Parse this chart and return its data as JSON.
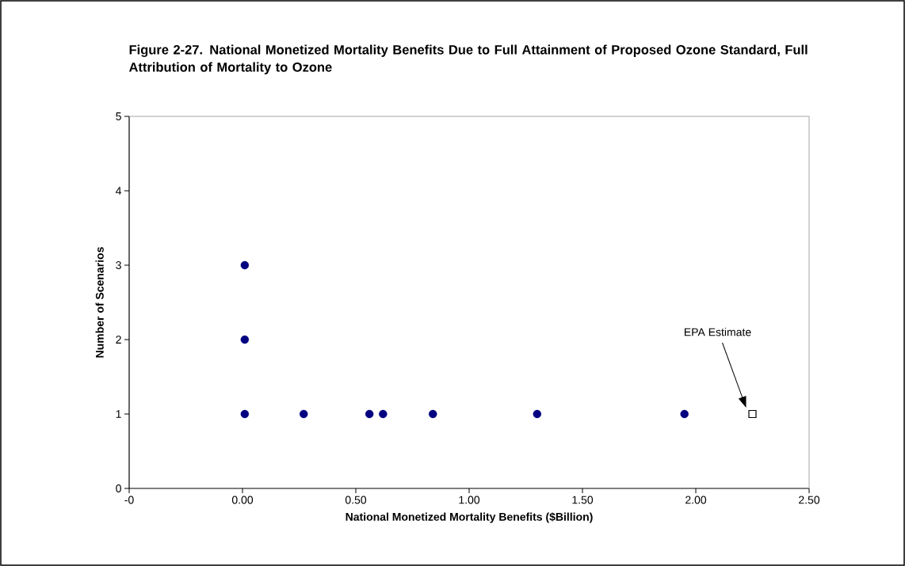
{
  "chart_data": {
    "type": "scatter",
    "title": "Figure 2-27. National Monetized Mortality Benefits Due to Full Attainment of Proposed Ozone Standard, Full Attribution of Mortality to Ozone",
    "xlabel": "National Monetized Mortality Benefits ($Billion)",
    "ylabel": "Number of Scenarios",
    "series": [
      {
        "color": "#000080",
        "marker": "circle",
        "x": [
          0.01,
          0.01,
          0.01,
          0.27,
          0.56,
          0.62,
          0.84,
          1.3,
          1.95
        ],
        "values": [
          3,
          2,
          1,
          1,
          1,
          1,
          1,
          1,
          1
        ]
      },
      {
        "color": "#000000",
        "marker": "square",
        "x": [
          2.25
        ],
        "values": [
          1
        ]
      }
    ],
    "annotations": [
      "EPA Estimate"
    ],
    "xlim": [
      -0.5,
      2.5
    ],
    "xticks": [
      {
        "value": -0.5,
        "label": "-0"
      },
      {
        "value": 0,
        "label": "0.00"
      },
      {
        "value": 0.5,
        "label": "0.50"
      },
      {
        "value": 1,
        "label": "1.00"
      },
      {
        "value": 1.5,
        "label": "1.50"
      },
      {
        "value": 2,
        "label": "2.00"
      },
      {
        "value": 2.5,
        "label": "2.50"
      }
    ],
    "ylim": [
      0,
      5
    ],
    "yticks": [
      0,
      1,
      2,
      3,
      4,
      5
    ],
    "grid": false
  }
}
